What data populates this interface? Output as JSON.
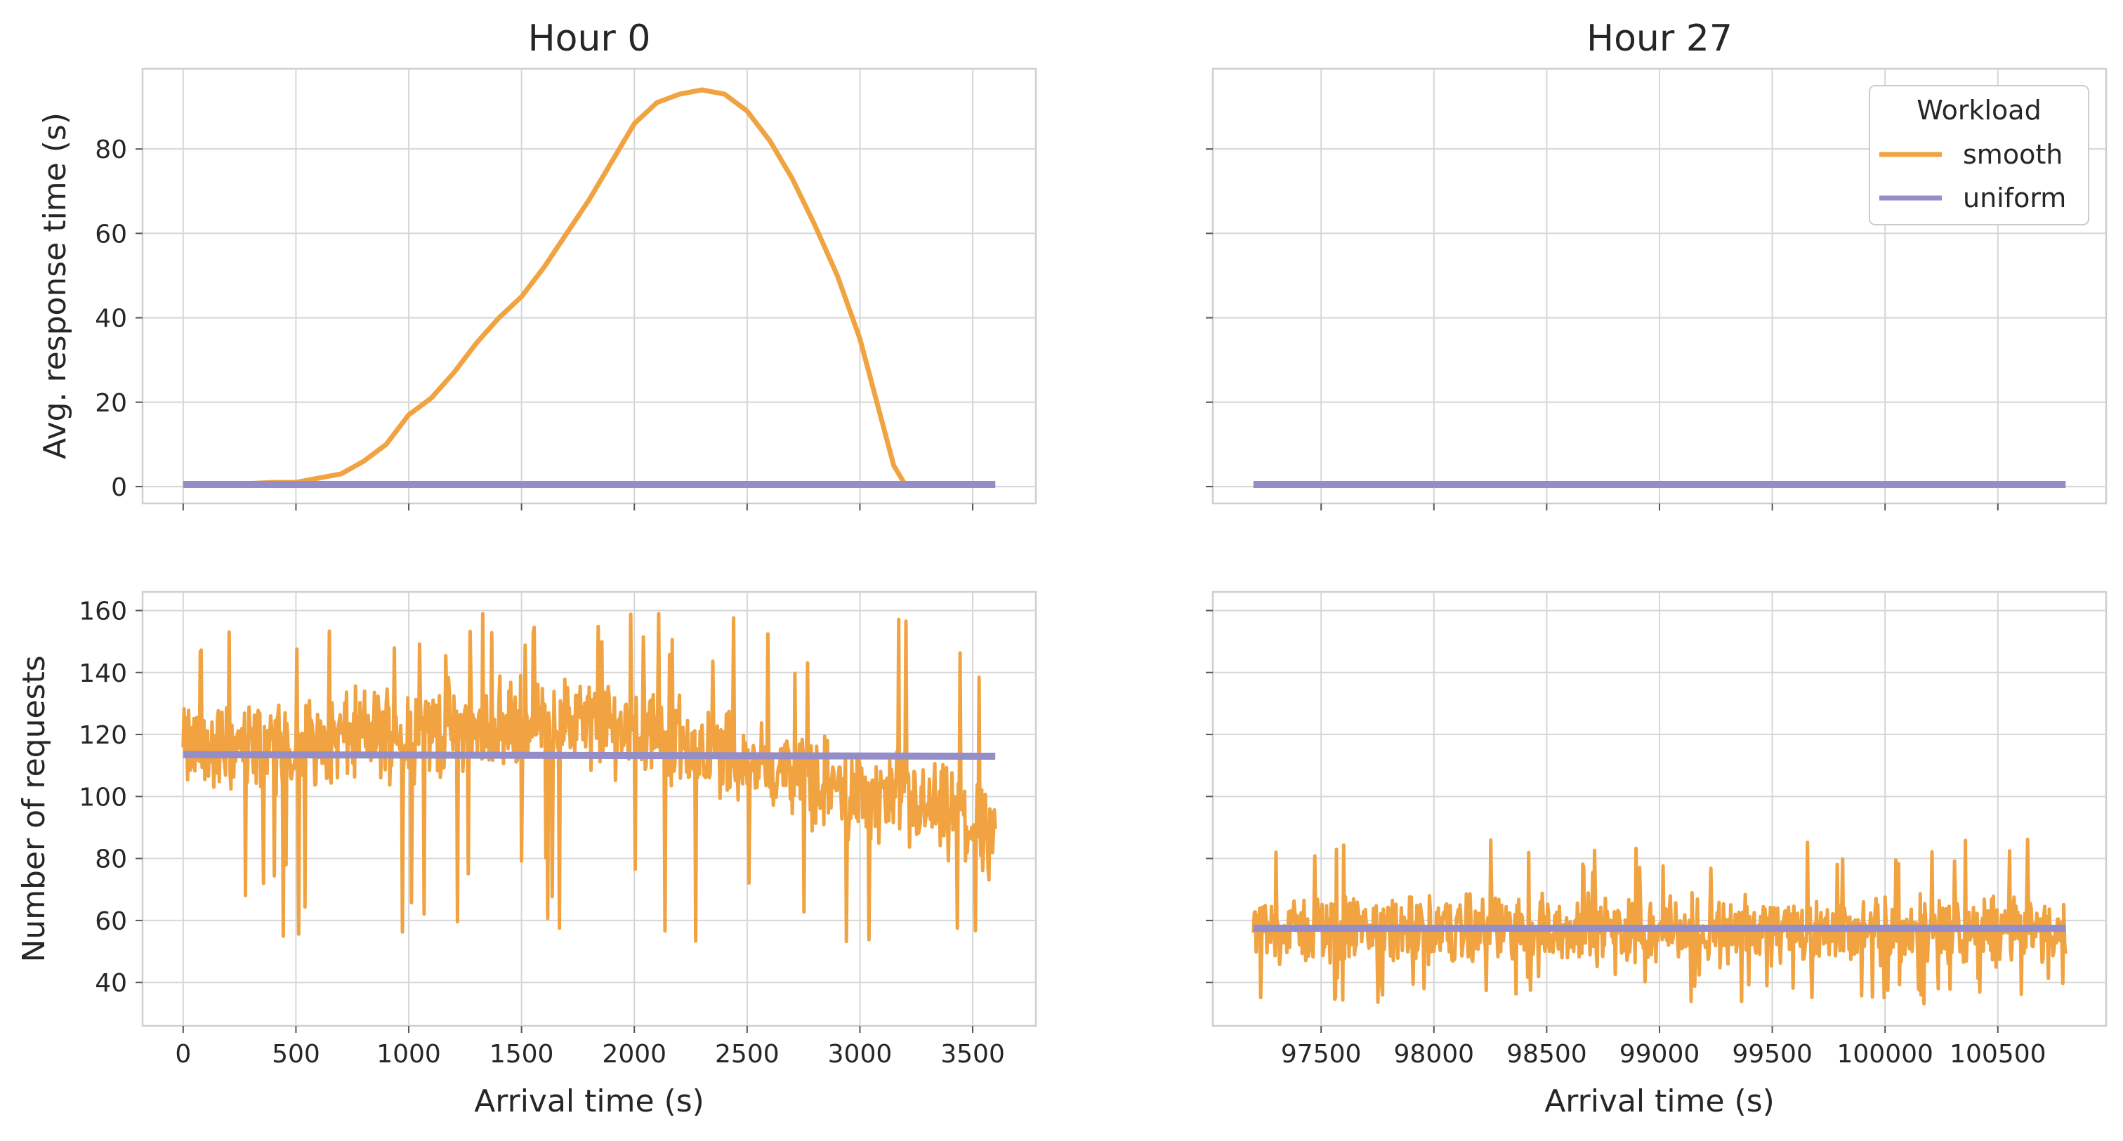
{
  "colors": {
    "smooth": "#f0a340",
    "uniform": "#948dc7"
  },
  "legend": {
    "title": "Workload",
    "placement": "top-right of Hour 27 response panel",
    "entries": [
      "smooth",
      "uniform"
    ]
  },
  "chart_data": [
    {
      "type": "line",
      "title": "Hour 0",
      "xlabel": "",
      "ylabel": "Avg. response time (s)",
      "xlim": [
        -180,
        3780
      ],
      "ylim": [
        -4,
        99
      ],
      "xticks": [
        0,
        500,
        1000,
        1500,
        2000,
        2500,
        3000,
        3500
      ],
      "xtick_labels_visible": false,
      "yticks": [
        0,
        20,
        40,
        60,
        80
      ],
      "series": [
        {
          "name": "smooth",
          "x": [
            0,
            200,
            400,
            500,
            600,
            700,
            800,
            900,
            1000,
            1100,
            1200,
            1300,
            1400,
            1500,
            1600,
            1700,
            1800,
            1900,
            2000,
            2100,
            2200,
            2300,
            2400,
            2500,
            2600,
            2700,
            2800,
            2900,
            3000,
            3100,
            3150,
            3200,
            3400,
            3600
          ],
          "y": [
            0.5,
            0.5,
            1,
            1,
            2,
            3,
            6,
            10,
            17,
            21,
            27,
            34,
            40,
            45,
            52,
            60,
            68,
            77,
            86,
            91,
            93,
            94,
            93,
            89,
            82,
            73,
            62,
            50,
            35,
            15,
            5,
            0.5,
            0.5,
            0.5
          ]
        },
        {
          "name": "uniform",
          "x": [
            0,
            3600
          ],
          "y": [
            0.5,
            0.5
          ]
        }
      ]
    },
    {
      "type": "line",
      "title": "Hour 27",
      "xlabel": "",
      "ylabel": "",
      "xlim": [
        97020,
        100980
      ],
      "ylim": [
        -4,
        99
      ],
      "xticks": [
        97500,
        98000,
        98500,
        99000,
        99500,
        100000,
        100500
      ],
      "xtick_labels_visible": false,
      "yticks": [
        0,
        20,
        40,
        60,
        80
      ],
      "ytick_labels_visible": false,
      "series": [
        {
          "name": "smooth",
          "x": [
            97200,
            100800
          ],
          "y": [
            0.5,
            0.5
          ]
        },
        {
          "name": "uniform",
          "x": [
            97200,
            100800
          ],
          "y": [
            0.5,
            0.5
          ]
        }
      ]
    },
    {
      "type": "line",
      "title": "",
      "xlabel": "Arrival time (s)",
      "ylabel": "Number of requests",
      "xlim": [
        -180,
        3780
      ],
      "ylim": [
        26,
        166
      ],
      "xticks": [
        0,
        500,
        1000,
        1500,
        2000,
        2500,
        3000,
        3500
      ],
      "yticks": [
        40,
        60,
        80,
        100,
        120,
        140,
        160
      ],
      "series": [
        {
          "name": "smooth",
          "style": "noisy",
          "x_range": [
            0,
            3600
          ],
          "trend_x": [
            0,
            300,
            600,
            900,
            1200,
            1500,
            1800,
            2100,
            2400,
            2700,
            3000,
            3300,
            3600
          ],
          "trend_y": [
            115,
            116,
            118,
            121,
            122,
            123,
            124,
            120,
            114,
            107,
            101,
            96,
            88
          ],
          "noise_amplitude": 11,
          "spike_max": 160,
          "spike_min": 53
        },
        {
          "name": "uniform",
          "x": [
            0,
            3600
          ],
          "y": [
            113.5,
            113
          ]
        }
      ]
    },
    {
      "type": "line",
      "title": "",
      "xlabel": "Arrival time (s)",
      "ylabel": "",
      "xlim": [
        97020,
        100980
      ],
      "ylim": [
        26,
        166
      ],
      "xticks": [
        97500,
        98000,
        98500,
        99000,
        99500,
        100000,
        100500
      ],
      "yticks": [
        40,
        60,
        80,
        100,
        120,
        140,
        160
      ],
      "ytick_labels_visible": false,
      "series": [
        {
          "name": "smooth",
          "style": "noisy",
          "x_range": [
            97200,
            100800
          ],
          "trend_x": [
            97200,
            100800
          ],
          "trend_y": [
            57,
            57
          ],
          "noise_amplitude": 8,
          "spike_max": 87,
          "spike_min": 33
        },
        {
          "name": "uniform",
          "x": [
            97200,
            100800
          ],
          "y": [
            57.5,
            57.5
          ]
        }
      ]
    }
  ]
}
